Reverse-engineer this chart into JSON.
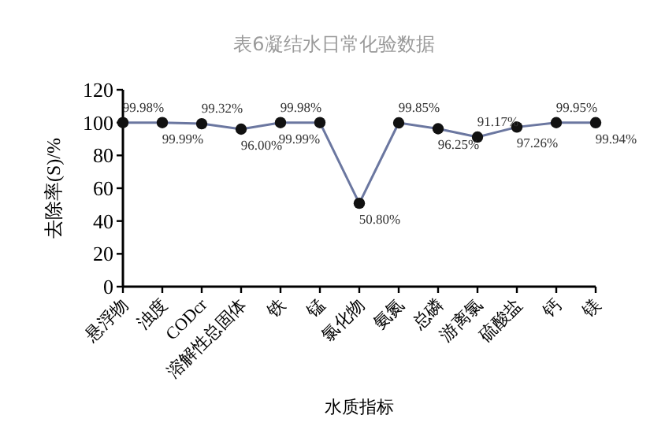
{
  "chart_data": {
    "type": "line",
    "title": "表6凝结水日常化验数据",
    "xlabel": "水质指标",
    "ylabel": "去除率(S)/%",
    "categories": [
      "悬浮物",
      "浊度",
      "CODcr",
      "溶解性总固体",
      "铁",
      "锰",
      "氯化物",
      "氨氮",
      "总磷",
      "游离氯",
      "硫酸盐",
      "钙",
      "镁"
    ],
    "values": [
      99.98,
      99.99,
      99.32,
      96.0,
      99.98,
      99.99,
      50.8,
      99.85,
      96.25,
      91.17,
      97.26,
      99.95,
      99.94
    ],
    "value_labels": [
      "99.98%",
      "99.99%",
      "99.32%",
      "96.00%",
      "99.98%",
      "99.99%",
      "50.80%",
      "99.85%",
      "96.25%",
      "91.17%",
      "97.26%",
      "99.95%",
      "99.94%"
    ],
    "color": "#6b77a0",
    "marker": "circle",
    "line_style": "solid",
    "ylim": [
      0,
      120
    ],
    "yticks": [
      0,
      20,
      40,
      60,
      80,
      100,
      120
    ]
  }
}
